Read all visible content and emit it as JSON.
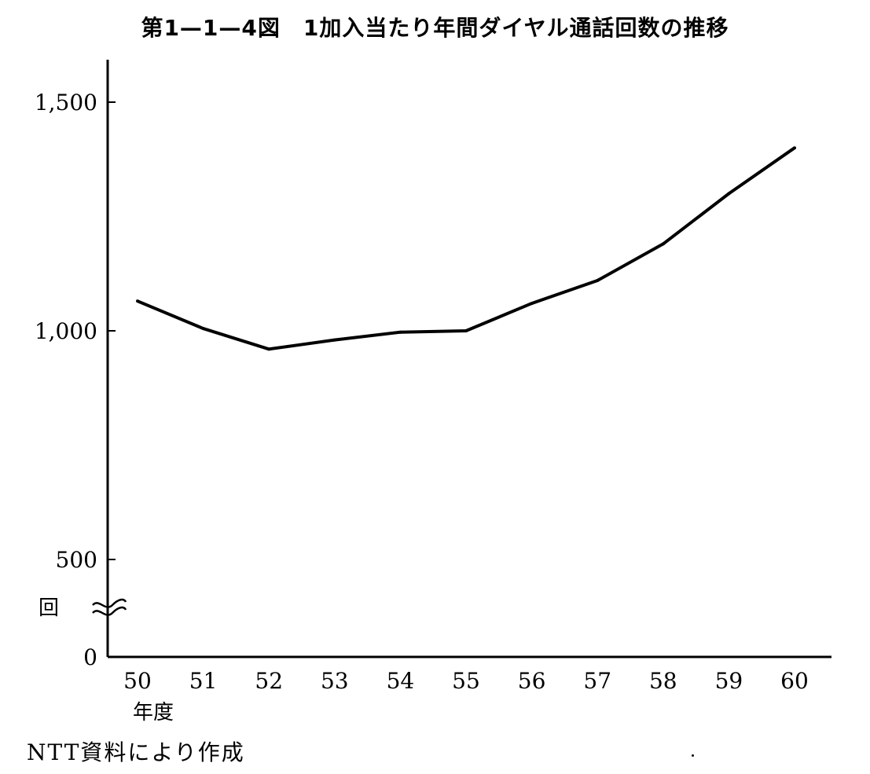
{
  "title": "第1—1—4図　1加入当たり年間ダイヤル通話回数の推移",
  "source": "NTT資料により作成",
  "chart_data": {
    "type": "line",
    "title": "第1—1—4図　1加入当たり年間ダイヤル通話回数の推移",
    "xlabel": "年度",
    "ylabel": "回",
    "categories": [
      "50",
      "51",
      "52",
      "53",
      "54",
      "55",
      "56",
      "57",
      "58",
      "59",
      "60"
    ],
    "series": [
      {
        "values": [
          1065,
          1005,
          960,
          980,
          997,
          1000,
          1060,
          1110,
          1190,
          1300,
          1400
        ]
      }
    ],
    "yticks": [
      {
        "value": 1500,
        "label": "1,500"
      },
      {
        "value": 1000,
        "label": "1,000"
      },
      {
        "value": 500,
        "label": "500"
      },
      {
        "value": 0,
        "label": "0"
      }
    ],
    "ylim": [
      0,
      1600
    ],
    "axis_break": true,
    "grid": false,
    "legend": "none",
    "line_color": "#000000"
  }
}
